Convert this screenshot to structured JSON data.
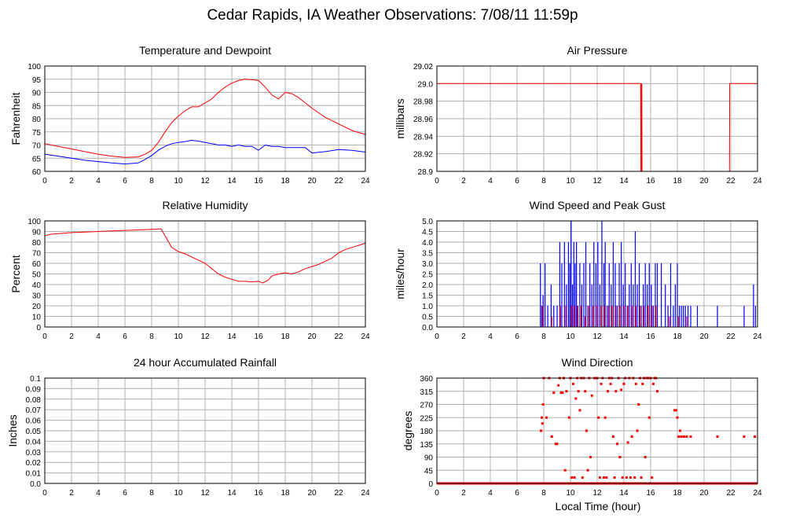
{
  "page": {
    "title": "Cedar Rapids, IA Weather Observations: 7/08/11 11:59p",
    "xlabel": "Local Time (hour)"
  },
  "colors": {
    "red": "#ff0000",
    "blue": "#0000ff",
    "grid": "#b0b0b0"
  },
  "chart_data": [
    {
      "id": "temp",
      "type": "line",
      "title": "Temperature and Dewpoint",
      "xlabel": "",
      "ylabel": "Fahrenheit",
      "xlim": [
        0,
        24
      ],
      "ylim": [
        60,
        100
      ],
      "xticks": [
        0,
        2,
        4,
        6,
        8,
        10,
        12,
        14,
        16,
        18,
        20,
        22,
        24
      ],
      "yticks": [
        60,
        65,
        70,
        75,
        80,
        85,
        90,
        95,
        100
      ],
      "grid": true,
      "series": [
        {
          "color": "#ff0000",
          "x": [
            0,
            1,
            2,
            3,
            4,
            5,
            6,
            7,
            7.5,
            8,
            8.5,
            9,
            9.5,
            10,
            10.5,
            11,
            11.5,
            12,
            12.5,
            13,
            13.5,
            14,
            14.5,
            15,
            15.5,
            16,
            16.5,
            17,
            17.5,
            18,
            18.5,
            19,
            19.5,
            20,
            21,
            22,
            23,
            24
          ],
          "y": [
            70.5,
            69.5,
            68.5,
            67.5,
            66.5,
            65.8,
            65.3,
            65.5,
            66.5,
            68,
            71,
            75,
            78.5,
            81,
            83,
            84.5,
            84.5,
            86,
            87.5,
            90,
            92,
            93.5,
            94.5,
            95,
            94.8,
            94.5,
            92,
            89,
            87.5,
            90,
            89.5,
            88,
            86,
            84,
            80.5,
            78,
            75.5,
            74
          ]
        },
        {
          "color": "#0000ff",
          "x": [
            0,
            1,
            2,
            3,
            4,
            5,
            6,
            7,
            7.5,
            8,
            8.5,
            9,
            9.5,
            10,
            10.5,
            11,
            11.5,
            12,
            12.5,
            13,
            13.5,
            14,
            14.5,
            15,
            15.5,
            16,
            16.5,
            17,
            17.5,
            18,
            18.5,
            19,
            19.5,
            20,
            21,
            22,
            23,
            24
          ],
          "y": [
            66.5,
            65.8,
            65,
            64.2,
            63.7,
            63.2,
            62.8,
            63.2,
            64.5,
            66,
            68,
            69.5,
            70.5,
            71,
            71.3,
            71.8,
            71.5,
            71,
            70.5,
            70,
            70,
            69.5,
            70,
            69.5,
            69.5,
            68,
            70,
            69.5,
            69.5,
            69,
            69,
            69,
            69,
            67,
            67.5,
            68.3,
            68,
            67.3
          ]
        }
      ]
    },
    {
      "id": "pressure",
      "type": "line",
      "title": "Air Pressure",
      "xlabel": "",
      "ylabel": "millibars",
      "xlim": [
        0,
        24
      ],
      "ylim": [
        28.9,
        29.02
      ],
      "xticks": [
        0,
        2,
        4,
        6,
        8,
        10,
        12,
        14,
        16,
        18,
        20,
        22,
        24
      ],
      "yticks": [
        28.9,
        28.92,
        28.94,
        28.96,
        28.98,
        29.0,
        29.02
      ],
      "grid": true,
      "series": [
        {
          "color": "#ff0000",
          "x": [
            0,
            15.25,
            15.27,
            15.3,
            15.32,
            15.34,
            15.36,
            15.4,
            15.42,
            21.9,
            21.92,
            21.95,
            24
          ],
          "y": [
            29.0,
            29.0,
            28.9,
            29.0,
            28.9,
            29.0,
            28.9,
            28.9,
            28.9,
            28.9,
            29.0,
            29.0,
            29.0
          ]
        }
      ]
    },
    {
      "id": "humidity",
      "type": "line",
      "title": "Relative Humidity",
      "xlabel": "",
      "ylabel": "Percent",
      "xlim": [
        0,
        24
      ],
      "ylim": [
        0,
        100
      ],
      "xticks": [
        0,
        2,
        4,
        6,
        8,
        10,
        12,
        14,
        16,
        18,
        20,
        22,
        24
      ],
      "yticks": [
        0,
        10,
        20,
        30,
        40,
        50,
        60,
        70,
        80,
        90,
        100
      ],
      "grid": true,
      "series": [
        {
          "color": "#ff0000",
          "x": [
            0,
            0.5,
            1,
            2,
            3,
            4,
            5,
            6,
            7,
            8,
            8.7,
            9,
            9.5,
            10,
            10.5,
            11,
            11.5,
            12,
            12.5,
            13,
            13.5,
            14,
            14.5,
            15,
            15.5,
            16,
            16.3,
            16.7,
            17,
            17.5,
            18,
            18.5,
            19,
            19.5,
            20,
            20.5,
            21,
            21.5,
            22,
            22.5,
            23,
            23.5,
            24
          ],
          "y": [
            86,
            87.5,
            88,
            89,
            89.5,
            90,
            90.5,
            91,
            91.5,
            92,
            92.5,
            86,
            75,
            71,
            69,
            66,
            63,
            60,
            55,
            50,
            47,
            45,
            43,
            43,
            42.5,
            43,
            41.5,
            44,
            48,
            50,
            51,
            50,
            52,
            55,
            57,
            59,
            62,
            65,
            70,
            73,
            75,
            77,
            79
          ]
        }
      ]
    },
    {
      "id": "wind_speed",
      "type": "bar",
      "title": "Wind Speed and Peak Gust",
      "xlabel": "",
      "ylabel": "miles/hour",
      "xlim": [
        0,
        24
      ],
      "ylim": [
        0,
        5
      ],
      "xticks": [
        0,
        2,
        4,
        6,
        8,
        10,
        12,
        14,
        16,
        18,
        20,
        22,
        24
      ],
      "yticks": [
        0.0,
        0.5,
        1.0,
        1.5,
        2.0,
        2.5,
        3.0,
        3.5,
        4.0,
        4.5,
        5.0
      ],
      "grid": true,
      "series": [
        {
          "color": "#0000ff",
          "x": [
            7.75,
            7.85,
            7.95,
            8.1,
            8.3,
            8.55,
            8.75,
            9.0,
            9.2,
            9.35,
            9.55,
            9.7,
            9.85,
            9.95,
            10.05,
            10.15,
            10.25,
            10.35,
            10.45,
            10.55,
            10.7,
            10.85,
            11.0,
            11.15,
            11.3,
            11.45,
            11.6,
            11.75,
            11.9,
            12.05,
            12.2,
            12.35,
            12.5,
            12.6,
            12.75,
            12.9,
            13.05,
            13.2,
            13.35,
            13.5,
            13.65,
            13.8,
            13.95,
            14.1,
            14.25,
            14.4,
            14.55,
            14.7,
            14.85,
            15.0,
            15.15,
            15.3,
            15.45,
            15.6,
            15.75,
            15.9,
            16.05,
            16.2,
            16.35,
            16.5,
            16.8,
            17.1,
            17.3,
            17.5,
            17.7,
            17.85,
            18.0,
            18.15,
            18.3,
            18.45,
            18.6,
            18.8,
            19.0,
            19.5,
            21.0,
            23.0,
            23.7,
            23.85
          ],
          "y": [
            3,
            1,
            1.5,
            3,
            1,
            2,
            1,
            1,
            4,
            3,
            4,
            2,
            4,
            3,
            5,
            2,
            4,
            3,
            4,
            1,
            3,
            2,
            3,
            4,
            1,
            3,
            2,
            4,
            3,
            4,
            2,
            5,
            3,
            4,
            1,
            3,
            2,
            4,
            3,
            1,
            3,
            4,
            2,
            3,
            1,
            2,
            3,
            2,
            4.5,
            2,
            3,
            1,
            2,
            3,
            2,
            3,
            2,
            1,
            3,
            3,
            3,
            2,
            1,
            3,
            1,
            2,
            3,
            1,
            1,
            1,
            1,
            1,
            1,
            1,
            1,
            1,
            2,
            1
          ]
        },
        {
          "color": "#ff0000",
          "x": [
            7.9,
            8.6,
            9.25,
            9.65,
            10.1,
            10.3,
            10.5,
            10.8,
            11.1,
            11.4,
            11.7,
            12.0,
            12.3,
            12.55,
            12.85,
            13.1,
            13.4,
            13.7,
            14.0,
            14.3,
            14.6,
            14.9,
            15.2,
            15.5,
            15.8,
            16.1,
            16.4,
            17.4,
            18.1,
            18.7
          ],
          "y": [
            1,
            0.5,
            1,
            1,
            1,
            1,
            1,
            1,
            0.5,
            1,
            1,
            1,
            1,
            1,
            1,
            1,
            1,
            1,
            1,
            1,
            1,
            1,
            1,
            1,
            1,
            1,
            1,
            0.5,
            0.5,
            0.5
          ]
        }
      ]
    },
    {
      "id": "rainfall",
      "type": "line",
      "title": "24 hour Accumulated Rainfall",
      "xlabel": "",
      "ylabel": "Inches",
      "xlim": [
        0,
        24
      ],
      "ylim": [
        0,
        0.1
      ],
      "xticks": [
        0,
        2,
        4,
        6,
        8,
        10,
        12,
        14,
        16,
        18,
        20,
        22,
        24
      ],
      "yticks": [
        0.0,
        0.01,
        0.02,
        0.03,
        0.04,
        0.05,
        0.06,
        0.07,
        0.08,
        0.09,
        0.1
      ],
      "grid": true,
      "series": [
        {
          "color": "#ff0000",
          "x": [
            0,
            24
          ],
          "y": [
            0,
            0
          ]
        }
      ]
    },
    {
      "id": "wind_direction",
      "type": "scatter",
      "title": "Wind Direction",
      "xlabel": "Local Time (hour)",
      "ylabel": "degrees",
      "xlim": [
        0,
        24
      ],
      "ylim": [
        0,
        360
      ],
      "xticks": [
        0,
        2,
        4,
        6,
        8,
        10,
        12,
        14,
        16,
        18,
        20,
        22,
        24
      ],
      "yticks": [
        0,
        45,
        90,
        135,
        180,
        225,
        270,
        315,
        360
      ],
      "grid": true,
      "series": [
        {
          "color": "#ff0000",
          "x": [
            7.8,
            7.85,
            7.9,
            7.95,
            8.0,
            8.2,
            8.4,
            8.6,
            8.75,
            8.9,
            9.0,
            9.1,
            9.2,
            9.3,
            9.4,
            9.5,
            9.6,
            9.7,
            9.8,
            9.9,
            10.0,
            10.1,
            10.2,
            10.3,
            10.4,
            10.5,
            10.6,
            10.7,
            10.8,
            10.9,
            11.0,
            11.1,
            11.2,
            11.3,
            11.4,
            11.5,
            11.6,
            11.7,
            11.8,
            11.9,
            12.0,
            12.1,
            12.2,
            12.3,
            12.4,
            12.5,
            12.6,
            12.7,
            12.8,
            12.9,
            13.0,
            13.1,
            13.2,
            13.3,
            13.4,
            13.5,
            13.6,
            13.7,
            13.8,
            13.9,
            14.0,
            14.1,
            14.2,
            14.3,
            14.4,
            14.5,
            14.6,
            14.7,
            14.8,
            14.9,
            15.0,
            15.1,
            15.2,
            15.3,
            15.4,
            15.5,
            15.6,
            15.7,
            15.8,
            15.9,
            16.0,
            16.1,
            16.2,
            16.3,
            16.4,
            16.5,
            17.8,
            17.9,
            18.0,
            18.1,
            18.2,
            18.3,
            18.5,
            18.7,
            19.0,
            21.0,
            23.0,
            23.8
          ],
          "y": [
            180,
            225,
            205,
            270,
            360,
            225,
            360,
            160,
            310,
            135,
            135,
            335,
            360,
            310,
            310,
            360,
            45,
            315,
            0,
            225,
            360,
            20,
            340,
            20,
            290,
            360,
            315,
            250,
            360,
            20,
            360,
            315,
            180,
            45,
            360,
            90,
            300,
            0,
            360,
            360,
            360,
            225,
            20,
            340,
            360,
            20,
            225,
            20,
            315,
            360,
            340,
            360,
            160,
            20,
            315,
            135,
            360,
            90,
            320,
            20,
            340,
            360,
            20,
            140,
            360,
            20,
            160,
            360,
            20,
            340,
            180,
            270,
            360,
            20,
            340,
            360,
            90,
            360,
            360,
            225,
            360,
            20,
            340,
            360,
            360,
            315,
            250,
            250,
            225,
            160,
            180,
            160,
            160,
            160,
            160,
            160,
            160,
            160
          ]
        },
        {
          "color": "#ff0000",
          "x": [
            0,
            24
          ],
          "y": [
            0,
            0
          ],
          "line": true
        }
      ]
    }
  ]
}
